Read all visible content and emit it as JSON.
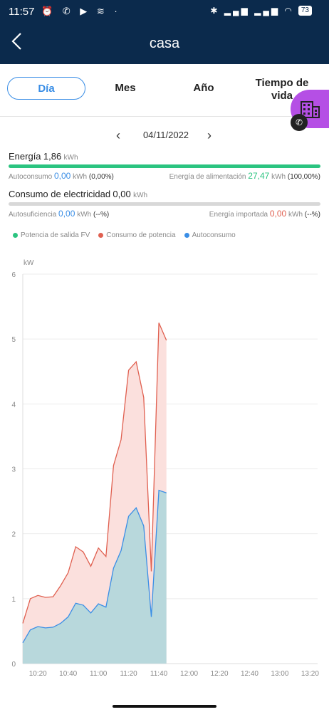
{
  "status": {
    "time": "11:57",
    "left_icons": "⏰ ✆ ▶ ≋ ·",
    "right_icons": "✱ ▂▄▆ ▂▄▆ ◠",
    "battery": "73"
  },
  "header": {
    "title": "casa"
  },
  "tabs": [
    {
      "label": "Día",
      "active": true
    },
    {
      "label": "Mes"
    },
    {
      "label": "Año"
    },
    {
      "label_line1": "Tiempo de",
      "label_line2": "vida"
    }
  ],
  "date": {
    "value": "04/11/2022"
  },
  "energy": {
    "label": "Energía",
    "value": "1,86",
    "unit": "kWh",
    "autoconsumo_label": "Autoconsumo",
    "autoconsumo_value": "0,00",
    "autoconsumo_unit": "kWh",
    "autoconsumo_pct": "(0,00%)",
    "alimentacion_label": "Energía de alimentación",
    "alimentacion_value": "27,47",
    "alimentacion_unit": "kWh",
    "alimentacion_pct": "(100,00%)",
    "bar_fraction": 1.0,
    "bar_color": "#2bc480"
  },
  "consumption": {
    "label": "Consumo de electricidad",
    "value": "0,00",
    "unit": "kWh",
    "autosuficiencia_label": "Autosuficiencia",
    "autosuficiencia_value": "0,00",
    "autosuficiencia_unit": "kWh",
    "autosuficiencia_pct": "(--%)",
    "importada_label": "Energía importada",
    "importada_value": "0,00",
    "importada_unit": "kWh",
    "importada_pct": "(--%)",
    "bar_color": "#d8d8d8"
  },
  "legend": [
    {
      "name": "Potencia de salida FV",
      "color": "#2bc480"
    },
    {
      "name": "Consumo de potencia",
      "color": "#e06050"
    },
    {
      "name": "Autoconsumo",
      "color": "#3a8ee6"
    }
  ],
  "chart_data": {
    "type": "area",
    "ylabel": "kW",
    "ylim": [
      0,
      6
    ],
    "yticks": [
      "0",
      "1",
      "2",
      "3",
      "4",
      "5",
      "6"
    ],
    "xlim": [
      "10:10",
      "13:25"
    ],
    "xticks": [
      "10:20",
      "10:40",
      "11:00",
      "11:20",
      "11:40",
      "12:00",
      "12:20",
      "12:40",
      "13:00",
      "13:20"
    ],
    "grid": true,
    "series": [
      {
        "name": "Consumo de potencia",
        "color": "#e06050",
        "fill": "#fbe0dd",
        "x": [
          "10:10",
          "10:15",
          "10:20",
          "10:25",
          "10:30",
          "10:35",
          "10:40",
          "10:45",
          "10:50",
          "10:55",
          "11:00",
          "11:05",
          "11:10",
          "11:15",
          "11:20",
          "11:25",
          "11:30",
          "11:35",
          "11:40",
          "11:45"
        ],
        "values": [
          0.62,
          1.0,
          1.05,
          1.02,
          1.03,
          1.2,
          1.4,
          1.8,
          1.72,
          1.5,
          1.78,
          1.65,
          3.05,
          3.45,
          4.52,
          4.65,
          4.1,
          1.42,
          5.25,
          4.98
        ]
      },
      {
        "name": "Autoconsumo",
        "color": "#3a8ee6",
        "fill": "#b8d8dc",
        "x": [
          "10:10",
          "10:15",
          "10:20",
          "10:25",
          "10:30",
          "10:35",
          "10:40",
          "10:45",
          "10:50",
          "10:55",
          "11:00",
          "11:05",
          "11:10",
          "11:15",
          "11:20",
          "11:25",
          "11:30",
          "11:35",
          "11:40",
          "11:45"
        ],
        "values": [
          0.32,
          0.52,
          0.57,
          0.55,
          0.56,
          0.62,
          0.72,
          0.93,
          0.9,
          0.78,
          0.92,
          0.87,
          1.47,
          1.74,
          2.27,
          2.4,
          2.12,
          0.72,
          2.67,
          2.63
        ]
      }
    ]
  }
}
